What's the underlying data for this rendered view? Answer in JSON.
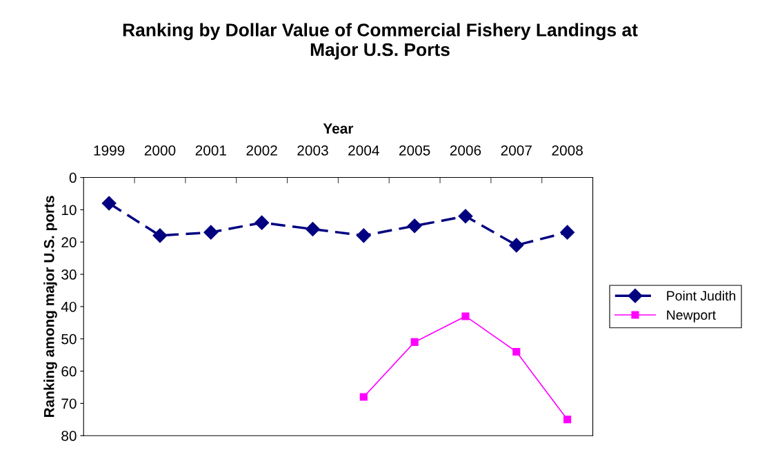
{
  "chart_data": {
    "type": "line",
    "title": "Ranking by Dollar Value of Commercial Fishery Landings at\nMajor U.S. Ports",
    "xlabel": "Year",
    "ylabel": "Ranking among major U.S. ports",
    "categories": [
      "1999",
      "2000",
      "2001",
      "2002",
      "2003",
      "2004",
      "2005",
      "2006",
      "2007",
      "2008"
    ],
    "series": [
      {
        "name": "Point Judith",
        "color": "#000080",
        "marker": "diamond",
        "line_style": "dashed",
        "values": [
          8,
          18,
          17,
          14,
          16,
          18,
          15,
          12,
          21,
          17
        ]
      },
      {
        "name": "Newport",
        "color": "#ff00ff",
        "marker": "square",
        "line_style": "solid",
        "values": [
          null,
          null,
          null,
          null,
          null,
          68,
          51,
          43,
          54,
          75
        ]
      }
    ],
    "ylim": [
      80,
      0
    ],
    "yticks": [
      0,
      10,
      20,
      30,
      40,
      50,
      60,
      70,
      80
    ],
    "grid": false,
    "legend": "right"
  }
}
